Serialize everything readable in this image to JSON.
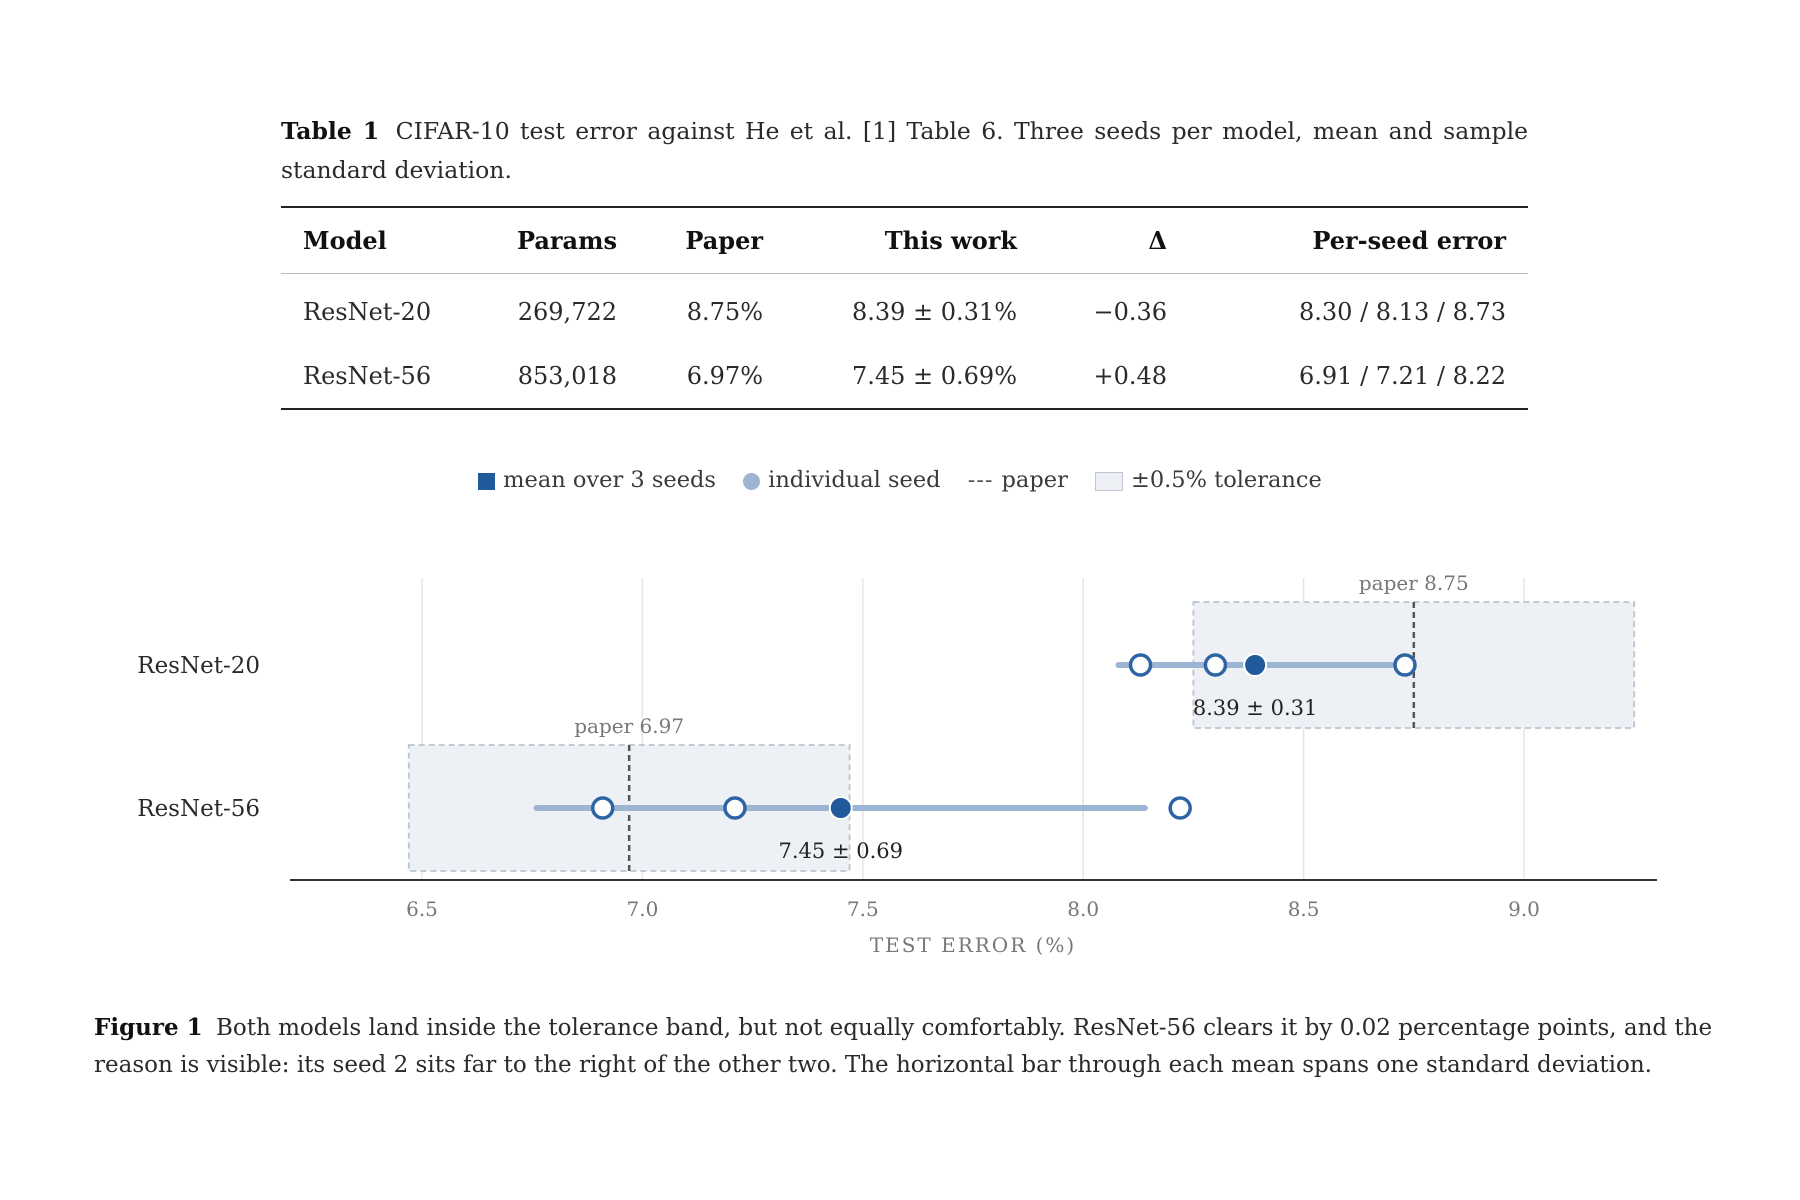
{
  "table_caption": {
    "label": "Table 1",
    "text": "CIFAR-10 test error against He et al. [1] Table 6. Three seeds per model, mean and sample standard deviation."
  },
  "table": {
    "headers": [
      "Model",
      "Params",
      "Paper",
      "This work",
      "Δ",
      "Per-seed error"
    ],
    "rows": [
      [
        "ResNet-20",
        "269,722",
        "8.75%",
        "8.39 ± 0.31%",
        "−0.36",
        "8.30 / 8.13 / 8.73"
      ],
      [
        "ResNet-56",
        "853,018",
        "6.97%",
        "7.45 ± 0.69%",
        "+0.48",
        "6.91 / 7.21 / 8.22"
      ]
    ]
  },
  "legend": {
    "mean": "mean over 3 seeds",
    "seed": "individual seed",
    "paper_dash": "---",
    "paper": "paper",
    "tolerance": "±0.5% tolerance"
  },
  "chart_data": {
    "type": "scatter",
    "title": "",
    "xlabel": "TEST ERROR (%)",
    "ylabel": "",
    "xlim": [
      6.2,
      9.3
    ],
    "x_ticks": [
      6.5,
      7.0,
      7.5,
      8.0,
      8.5,
      9.0
    ],
    "x_tick_labels": [
      "6.5",
      "7.0",
      "7.5",
      "8.0",
      "8.5",
      "9.0"
    ],
    "grid": true,
    "tolerance": 0.5,
    "colors": {
      "mean": "#215a9b",
      "seed_line": "#9bb5d2",
      "seed_ring": "#2e64a4",
      "band_fill": "#edf1f5",
      "band_border": "#bcc4cd",
      "paper_line": "#555555"
    },
    "series": [
      {
        "name": "ResNet-20",
        "mean": 8.39,
        "std": 0.31,
        "paper": 8.75,
        "seeds": [
          8.3,
          8.13,
          8.73
        ],
        "mean_label": "8.39 ± 0.31",
        "paper_label": "paper 8.75"
      },
      {
        "name": "ResNet-56",
        "mean": 7.45,
        "std": 0.69,
        "paper": 6.97,
        "seeds": [
          6.91,
          7.21,
          8.22
        ],
        "mean_label": "7.45 ± 0.69",
        "paper_label": "paper 6.97"
      }
    ]
  },
  "figure_caption": {
    "label": "Figure 1",
    "text": "Both models land inside the tolerance band, but not equally comfortably. ResNet-56 clears it by 0.02 percentage points, and the reason is visible: its seed 2 sits far to the right of the other two. The horizontal bar through each mean spans one standard deviation."
  }
}
